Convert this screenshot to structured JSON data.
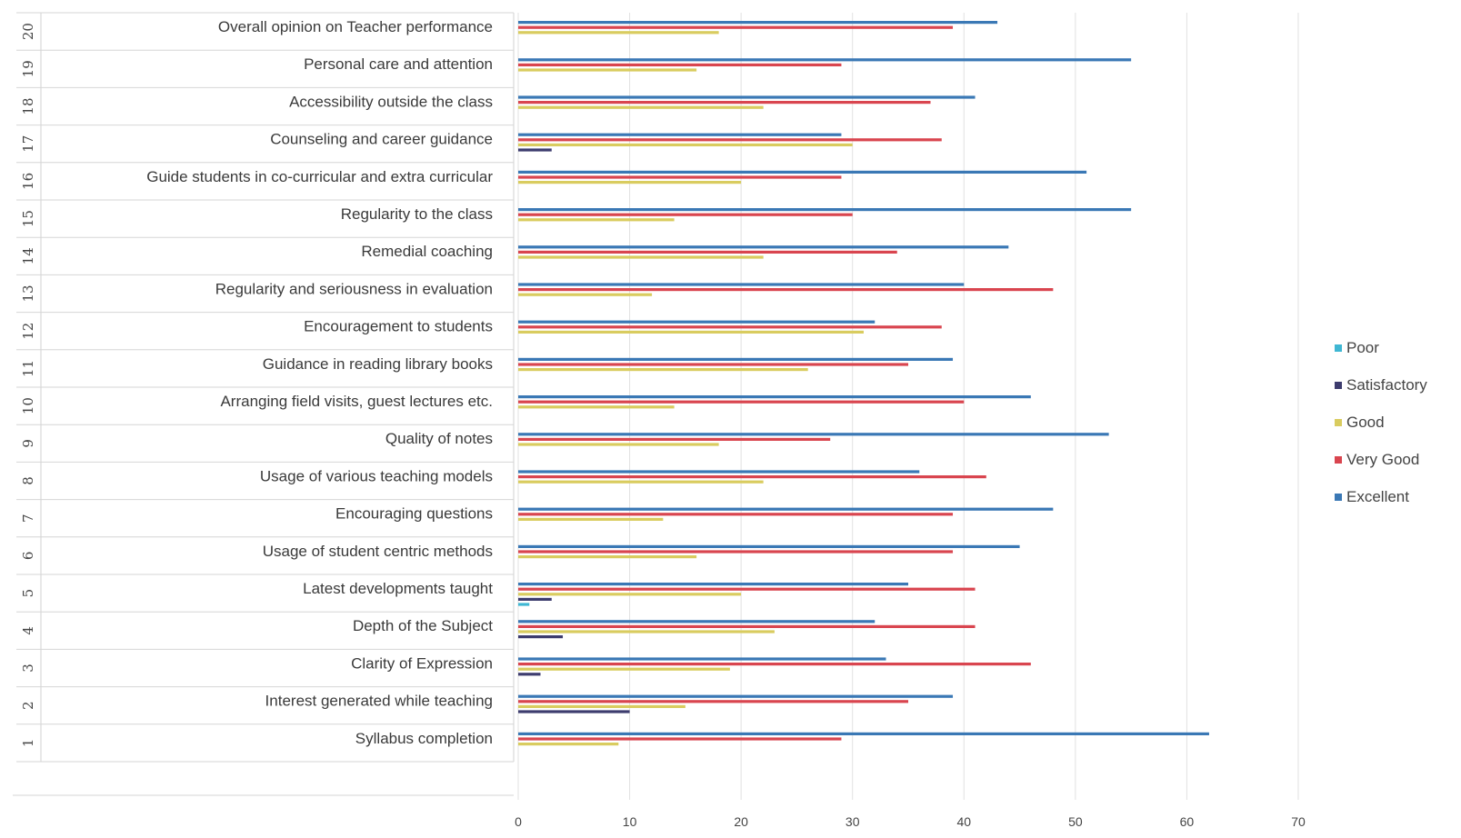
{
  "chart_data": {
    "type": "bar",
    "orientation": "horizontal",
    "title": "",
    "xlabel": "",
    "ylabel": "",
    "xlim": [
      0,
      70
    ],
    "xticks": [
      "0",
      "10",
      "20",
      "30",
      "40",
      "50",
      "60",
      "70"
    ],
    "grid": true,
    "legend_position": "right",
    "row_numbers": [
      "1",
      "2",
      "3",
      "4",
      "5",
      "6",
      "7",
      "8",
      "9",
      "10",
      "11",
      "12",
      "13",
      "14",
      "15",
      "16",
      "17",
      "18",
      "19",
      "20"
    ],
    "categories": [
      "Syllabus completion",
      "Interest generated while teaching",
      "Clarity of Expression",
      "Depth of the Subject",
      "Latest developments taught",
      "Usage of student centric methods",
      "Encouraging questions",
      "Usage of various teaching models",
      "Quality of notes",
      "Arranging field visits, guest lectures etc.",
      "Guidance in reading library books",
      "Encouragement to students",
      "Regularity and seriousness in evaluation",
      "Remedial coaching",
      "Regularity to the class",
      "Guide students in co-curricular and extra curricular",
      "Counseling and career guidance",
      "Accessibility outside the class",
      "Personal care and attention",
      "Overall opinion on Teacher performance"
    ],
    "series": [
      {
        "name": "Poor",
        "color": "#3fb7d3",
        "values": [
          0,
          0,
          0,
          0,
          1,
          0,
          0,
          0,
          0,
          0,
          0,
          0,
          0,
          0,
          0,
          0,
          0,
          0,
          0,
          0
        ]
      },
      {
        "name": "Satisfactory",
        "color": "#3d3c6e",
        "values": [
          0,
          10,
          2,
          4,
          3,
          0,
          0,
          0,
          0,
          0,
          0,
          0,
          0,
          0,
          0,
          0,
          3,
          0,
          0,
          0
        ]
      },
      {
        "name": "Good",
        "color": "#d9cc5f",
        "values": [
          9,
          15,
          19,
          23,
          20,
          16,
          13,
          22,
          18,
          14,
          26,
          31,
          12,
          22,
          14,
          20,
          30,
          22,
          16,
          18
        ]
      },
      {
        "name": "Very Good",
        "color": "#d9454f",
        "values": [
          29,
          35,
          46,
          41,
          41,
          39,
          39,
          42,
          28,
          40,
          35,
          38,
          48,
          34,
          30,
          29,
          38,
          37,
          29,
          39
        ]
      },
      {
        "name": "Excellent",
        "color": "#3a78b5",
        "values": [
          62,
          39,
          33,
          32,
          35,
          45,
          48,
          36,
          53,
          46,
          39,
          32,
          40,
          44,
          55,
          51,
          29,
          41,
          55,
          43
        ]
      }
    ]
  },
  "legend": {
    "items": [
      {
        "label": "Poor",
        "color": "#3fb7d3"
      },
      {
        "label": "Satisfactory",
        "color": "#3d3c6e"
      },
      {
        "label": "Good",
        "color": "#d9cc5f"
      },
      {
        "label": "Very Good",
        "color": "#d9454f"
      },
      {
        "label": "Excellent",
        "color": "#3a78b5"
      }
    ]
  }
}
